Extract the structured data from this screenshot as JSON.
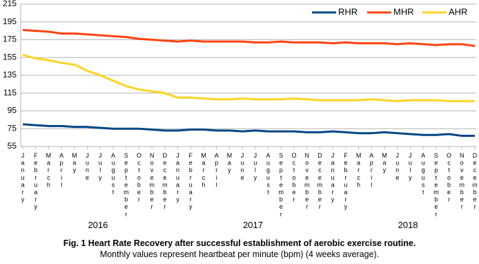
{
  "chart_data": {
    "type": "line",
    "title": "Fig. 1 Heart Rate Recovery after successful establishment of aerobic exercise routine.",
    "subtitle": "Monthly values represent heartbeat per minute (bpm) (4 weeks average).",
    "categories": [
      "January",
      "February",
      "March",
      "April",
      "May",
      "June",
      "July",
      "August",
      "September",
      "October",
      "November",
      "December",
      "January",
      "February",
      "March",
      "April",
      "May",
      "June",
      "July",
      "August",
      "September",
      "October",
      "November",
      "December",
      "January",
      "February",
      "March",
      "April",
      "May",
      "June",
      "July",
      "August",
      "September",
      "October",
      "November",
      "December"
    ],
    "year_labels": [
      "2016",
      "2017",
      "2018"
    ],
    "series": [
      {
        "name": "RHR",
        "color": "#004586",
        "values": [
          80,
          79,
          78,
          78,
          77,
          77,
          76,
          75,
          75,
          75,
          74,
          73,
          73,
          74,
          74,
          73,
          73,
          72,
          73,
          72,
          72,
          72,
          71,
          71,
          72,
          71,
          70,
          70,
          71,
          70,
          69,
          68,
          68,
          69,
          67,
          67
        ]
      },
      {
        "name": "MHR",
        "color": "#ff420e",
        "values": [
          186,
          185,
          184,
          182,
          182,
          181,
          180,
          179,
          178,
          176,
          175,
          174,
          173,
          174,
          173,
          173,
          173,
          173,
          172,
          172,
          173,
          172,
          172,
          172,
          171,
          172,
          171,
          171,
          171,
          170,
          171,
          170,
          169,
          170,
          170,
          168
        ]
      },
      {
        "name": "AHR",
        "color": "#ffd320",
        "values": [
          158,
          154,
          152,
          149,
          147,
          140,
          135,
          129,
          123,
          119,
          117,
          115,
          110,
          110,
          109,
          108,
          108,
          109,
          108,
          108,
          108,
          109,
          108,
          107,
          107,
          107,
          107,
          108,
          107,
          106,
          107,
          107,
          107,
          106,
          106,
          106
        ]
      }
    ],
    "ylim": [
      55,
      215
    ],
    "yticks": [
      55,
      75,
      95,
      115,
      135,
      155,
      175,
      195,
      215
    ],
    "grid": true,
    "legend": "top-right"
  }
}
